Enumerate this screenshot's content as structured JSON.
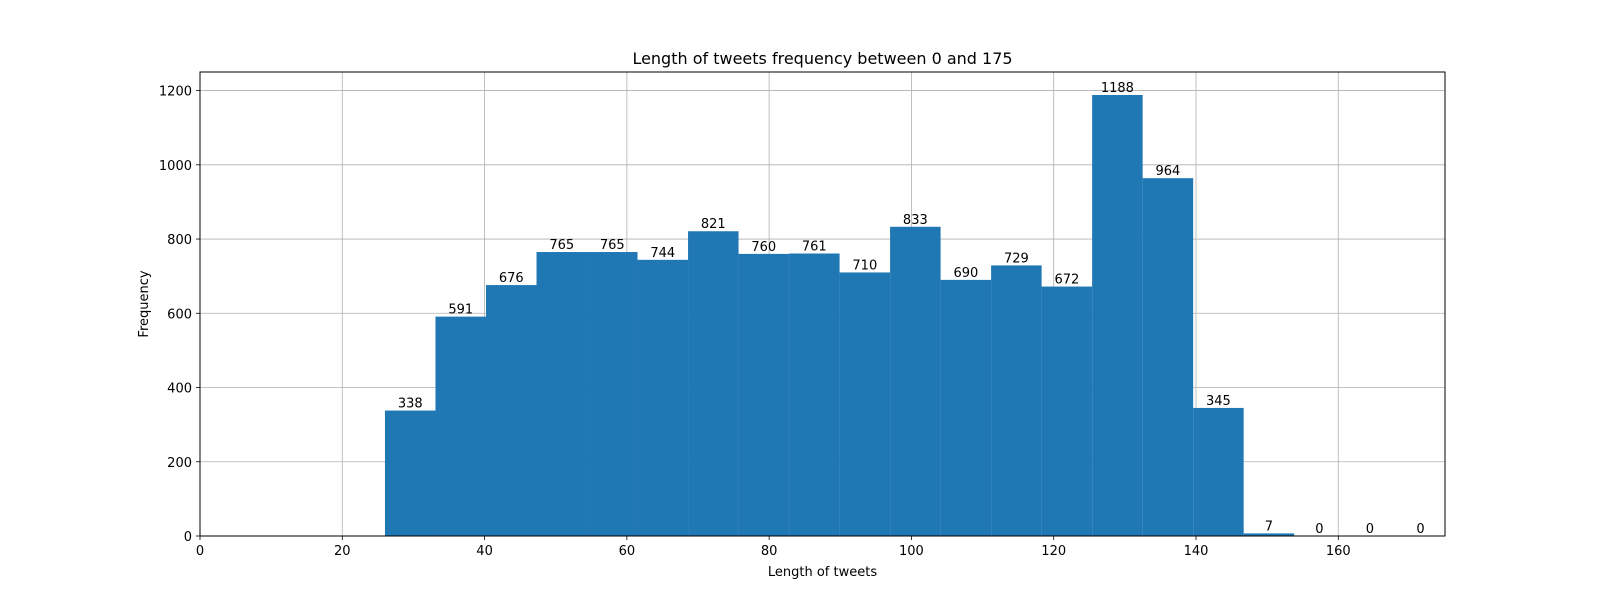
{
  "chart_data": {
    "type": "bar",
    "title": "Length of tweets frequency between 0 and 175",
    "xlabel": "Length of tweets",
    "ylabel": "Frequency",
    "xlim": [
      0,
      175
    ],
    "ylim": [
      0,
      1250
    ],
    "grid": true,
    "bar_color": "#1f77b4",
    "x_ticks": [
      0,
      20,
      40,
      60,
      80,
      100,
      120,
      140,
      160
    ],
    "y_ticks": [
      0,
      200,
      400,
      600,
      800,
      1000,
      1200
    ],
    "bins": [
      {
        "start": 26.0,
        "end": 33.1,
        "value": 338,
        "label": "338"
      },
      {
        "start": 33.1,
        "end": 40.2,
        "value": 591,
        "label": "591"
      },
      {
        "start": 40.2,
        "end": 47.3,
        "value": 676,
        "label": "676"
      },
      {
        "start": 47.3,
        "end": 54.4,
        "value": 765,
        "label": "765"
      },
      {
        "start": 54.4,
        "end": 61.5,
        "value": 765,
        "label": "765"
      },
      {
        "start": 61.5,
        "end": 68.6,
        "value": 744,
        "label": "744"
      },
      {
        "start": 68.6,
        "end": 75.7,
        "value": 821,
        "label": "821"
      },
      {
        "start": 75.7,
        "end": 82.8,
        "value": 760,
        "label": "760"
      },
      {
        "start": 82.8,
        "end": 89.9,
        "value": 761,
        "label": "761"
      },
      {
        "start": 89.9,
        "end": 97.0,
        "value": 710,
        "label": "710"
      },
      {
        "start": 97.0,
        "end": 104.1,
        "value": 833,
        "label": "833"
      },
      {
        "start": 104.1,
        "end": 111.2,
        "value": 690,
        "label": "690"
      },
      {
        "start": 111.2,
        "end": 118.3,
        "value": 729,
        "label": "729"
      },
      {
        "start": 118.3,
        "end": 125.4,
        "value": 672,
        "label": "672"
      },
      {
        "start": 125.4,
        "end": 132.5,
        "value": 1188,
        "label": "1188"
      },
      {
        "start": 132.5,
        "end": 139.6,
        "value": 964,
        "label": "964"
      },
      {
        "start": 139.6,
        "end": 146.7,
        "value": 345,
        "label": "345"
      },
      {
        "start": 146.7,
        "end": 153.8,
        "value": 7,
        "label": "7"
      },
      {
        "start": 153.8,
        "end": 160.9,
        "value": 0,
        "label": "0"
      },
      {
        "start": 160.9,
        "end": 168.0,
        "value": 0,
        "label": "0"
      },
      {
        "start": 168.0,
        "end": 175.1,
        "value": 0,
        "label": "0"
      }
    ]
  }
}
